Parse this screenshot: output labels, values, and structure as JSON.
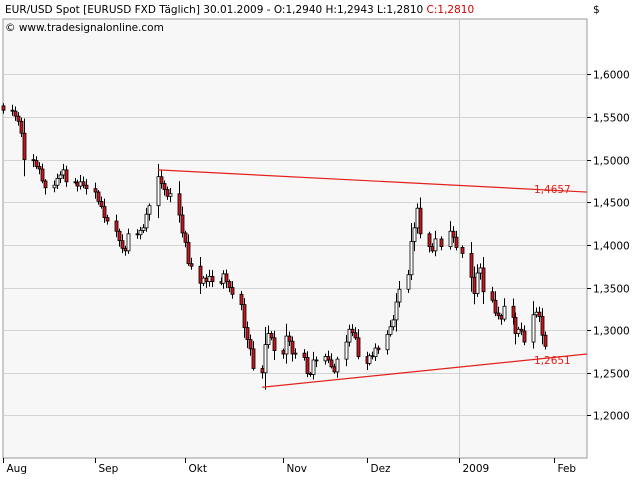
{
  "header": {
    "title_prefix": "EUR/USD Spot [EURUSD FXD  Täglich] 30.01.2009 - O:1,2940 H:1,2943 L:1,2810 ",
    "close_text": "C:1,2810",
    "source": "© www.tradesignalonline.com",
    "currency_symbol": "$"
  },
  "colors": {
    "background": "#ffffff",
    "plot_background": "#f7f7f7",
    "grid": "#d4d4d4",
    "up_candle": "#ffffff",
    "down_candle": "#c4161c",
    "wick": "#000000",
    "trendline": "#e3201b",
    "text": "#000000",
    "close_text": "#d20000"
  },
  "chart_data": {
    "type": "candlestick",
    "title": "EUR/USD Spot [EURUSD FXD  Täglich] 30.01.2009 - O:1,2940 H:1,2943 L:1,2810 C:1,2810",
    "y_axis_label": "$",
    "ylim": [
      1.15,
      1.665
    ],
    "y_ticks": [
      "1,2000",
      "1,2500",
      "1,3000",
      "1,3500",
      "1,4000",
      "1,4500",
      "1,5000",
      "1,5500",
      "1,6000"
    ],
    "y_tick_values": [
      1.2,
      1.25,
      1.3,
      1.35,
      1.4,
      1.45,
      1.5,
      1.55,
      1.6
    ],
    "x_range": [
      "2008-08-01",
      "2009-02-13"
    ],
    "x_ticks": [
      {
        "label": "Aug",
        "date": "2008-08-01"
      },
      {
        "label": "Sep",
        "date": "2008-09-01"
      },
      {
        "label": "Okt",
        "date": "2008-10-01"
      },
      {
        "label": "Nov",
        "date": "2008-11-03"
      },
      {
        "label": "Dez",
        "date": "2008-12-01"
      },
      {
        "label": "2009",
        "date": "2009-01-01"
      },
      {
        "label": "Feb",
        "date": "2009-02-02"
      }
    ],
    "series_close": [
      [
        "2008-08-01",
        1.558
      ],
      [
        "2008-08-04",
        1.557
      ],
      [
        "2008-08-05",
        1.551
      ],
      [
        "2008-08-06",
        1.545
      ],
      [
        "2008-08-07",
        1.531
      ],
      [
        "2008-08-08",
        1.5
      ],
      [
        "2008-08-11",
        1.499
      ],
      [
        "2008-08-12",
        1.492
      ],
      [
        "2008-08-13",
        1.489
      ],
      [
        "2008-08-14",
        1.475
      ],
      [
        "2008-08-15",
        1.467
      ],
      [
        "2008-08-18",
        1.47
      ],
      [
        "2008-08-19",
        1.478
      ],
      [
        "2008-08-20",
        1.482
      ],
      [
        "2008-08-21",
        1.488
      ],
      [
        "2008-08-22",
        1.474
      ],
      [
        "2008-08-25",
        1.473
      ],
      [
        "2008-08-26",
        1.469
      ],
      [
        "2008-08-27",
        1.474
      ],
      [
        "2008-08-28",
        1.47
      ],
      [
        "2008-08-29",
        1.466
      ],
      [
        "2008-09-01",
        1.462
      ],
      [
        "2008-09-02",
        1.451
      ],
      [
        "2008-09-03",
        1.445
      ],
      [
        "2008-09-04",
        1.432
      ],
      [
        "2008-09-05",
        1.428
      ],
      [
        "2008-09-08",
        1.416
      ],
      [
        "2008-09-09",
        1.405
      ],
      [
        "2008-09-10",
        1.396
      ],
      [
        "2008-09-11",
        1.393
      ],
      [
        "2008-09-12",
        1.413
      ],
      [
        "2008-09-15",
        1.412
      ],
      [
        "2008-09-16",
        1.417
      ],
      [
        "2008-09-17",
        1.42
      ],
      [
        "2008-09-18",
        1.436
      ],
      [
        "2008-09-19",
        1.446
      ],
      [
        "2008-09-22",
        1.48
      ],
      [
        "2008-09-23",
        1.472
      ],
      [
        "2008-09-24",
        1.465
      ],
      [
        "2008-09-25",
        1.457
      ],
      [
        "2008-09-26",
        1.46
      ],
      [
        "2008-09-29",
        1.435
      ],
      [
        "2008-09-30",
        1.414
      ],
      [
        "2008-10-01",
        1.403
      ],
      [
        "2008-10-02",
        1.378
      ],
      [
        "2008-10-03",
        1.375
      ],
      [
        "2008-10-06",
        1.355
      ],
      [
        "2008-10-07",
        1.361
      ],
      [
        "2008-10-08",
        1.357
      ],
      [
        "2008-10-09",
        1.363
      ],
      [
        "2008-10-10",
        1.357
      ],
      [
        "2008-10-13",
        1.355
      ],
      [
        "2008-10-14",
        1.366
      ],
      [
        "2008-10-15",
        1.357
      ],
      [
        "2008-10-16",
        1.35
      ],
      [
        "2008-10-17",
        1.342
      ],
      [
        "2008-10-20",
        1.33
      ],
      [
        "2008-10-21",
        1.303
      ],
      [
        "2008-10-22",
        1.289
      ],
      [
        "2008-10-23",
        1.278
      ],
      [
        "2008-10-24",
        1.255
      ],
      [
        "2008-10-27",
        1.25
      ],
      [
        "2008-10-28",
        1.283
      ],
      [
        "2008-10-29",
        1.296
      ],
      [
        "2008-10-30",
        1.291
      ],
      [
        "2008-10-31",
        1.276
      ],
      [
        "2008-11-03",
        1.272
      ],
      [
        "2008-11-04",
        1.293
      ],
      [
        "2008-11-05",
        1.287
      ],
      [
        "2008-11-06",
        1.272
      ],
      [
        "2008-11-07",
        1.273
      ],
      [
        "2008-11-10",
        1.268
      ],
      [
        "2008-11-11",
        1.249
      ],
      [
        "2008-11-12",
        1.248
      ],
      [
        "2008-11-13",
        1.265
      ],
      [
        "2008-11-14",
        1.264
      ],
      [
        "2008-11-17",
        1.269
      ],
      [
        "2008-11-18",
        1.265
      ],
      [
        "2008-11-19",
        1.257
      ],
      [
        "2008-11-20",
        1.251
      ],
      [
        "2008-11-21",
        1.266
      ],
      [
        "2008-11-24",
        1.286
      ],
      [
        "2008-11-25",
        1.301
      ],
      [
        "2008-11-26",
        1.297
      ],
      [
        "2008-11-27",
        1.291
      ],
      [
        "2008-11-28",
        1.269
      ],
      [
        "2008-12-01",
        1.261
      ],
      [
        "2008-12-02",
        1.27
      ],
      [
        "2008-12-03",
        1.269
      ],
      [
        "2008-12-04",
        1.279
      ],
      [
        "2008-12-05",
        1.277
      ],
      [
        "2008-12-08",
        1.295
      ],
      [
        "2008-12-09",
        1.304
      ],
      [
        "2008-12-10",
        1.312
      ],
      [
        "2008-12-11",
        1.333
      ],
      [
        "2008-12-12",
        1.348
      ],
      [
        "2008-12-15",
        1.365
      ],
      [
        "2008-12-16",
        1.404
      ],
      [
        "2008-12-17",
        1.42
      ],
      [
        "2008-12-18",
        1.443
      ],
      [
        "2008-12-19",
        1.413
      ],
      [
        "2008-12-22",
        1.398
      ],
      [
        "2008-12-23",
        1.393
      ],
      [
        "2008-12-24",
        1.407
      ],
      [
        "2008-12-26",
        1.398
      ],
      [
        "2008-12-29",
        1.416
      ],
      [
        "2008-12-30",
        1.409
      ],
      [
        "2008-12-31",
        1.397
      ],
      [
        "2009-01-02",
        1.39
      ],
      [
        "2009-01-05",
        1.362
      ],
      [
        "2009-01-06",
        1.343
      ],
      [
        "2009-01-07",
        1.367
      ],
      [
        "2009-01-08",
        1.373
      ],
      [
        "2009-01-09",
        1.345
      ],
      [
        "2009-01-12",
        1.335
      ],
      [
        "2009-01-13",
        1.32
      ],
      [
        "2009-01-14",
        1.317
      ],
      [
        "2009-01-15",
        1.313
      ],
      [
        "2009-01-16",
        1.328
      ],
      [
        "2009-01-19",
        1.315
      ],
      [
        "2009-01-20",
        1.296
      ],
      [
        "2009-01-21",
        1.301
      ],
      [
        "2009-01-22",
        1.299
      ],
      [
        "2009-01-23",
        1.286
      ],
      [
        "2009-01-26",
        1.318
      ],
      [
        "2009-01-27",
        1.321
      ],
      [
        "2009-01-28",
        1.316
      ],
      [
        "2009-01-29",
        1.294
      ],
      [
        "2009-01-30",
        1.281
      ]
    ],
    "trendlines": [
      {
        "label": "1,4657",
        "start": [
          "2008-09-22",
          1.488
        ],
        "end": [
          "2009-02-13",
          1.462
        ]
      },
      {
        "label": "1,2651",
        "start": [
          "2008-10-27",
          1.233
        ],
        "end": [
          "2009-02-13",
          1.272
        ]
      }
    ]
  }
}
